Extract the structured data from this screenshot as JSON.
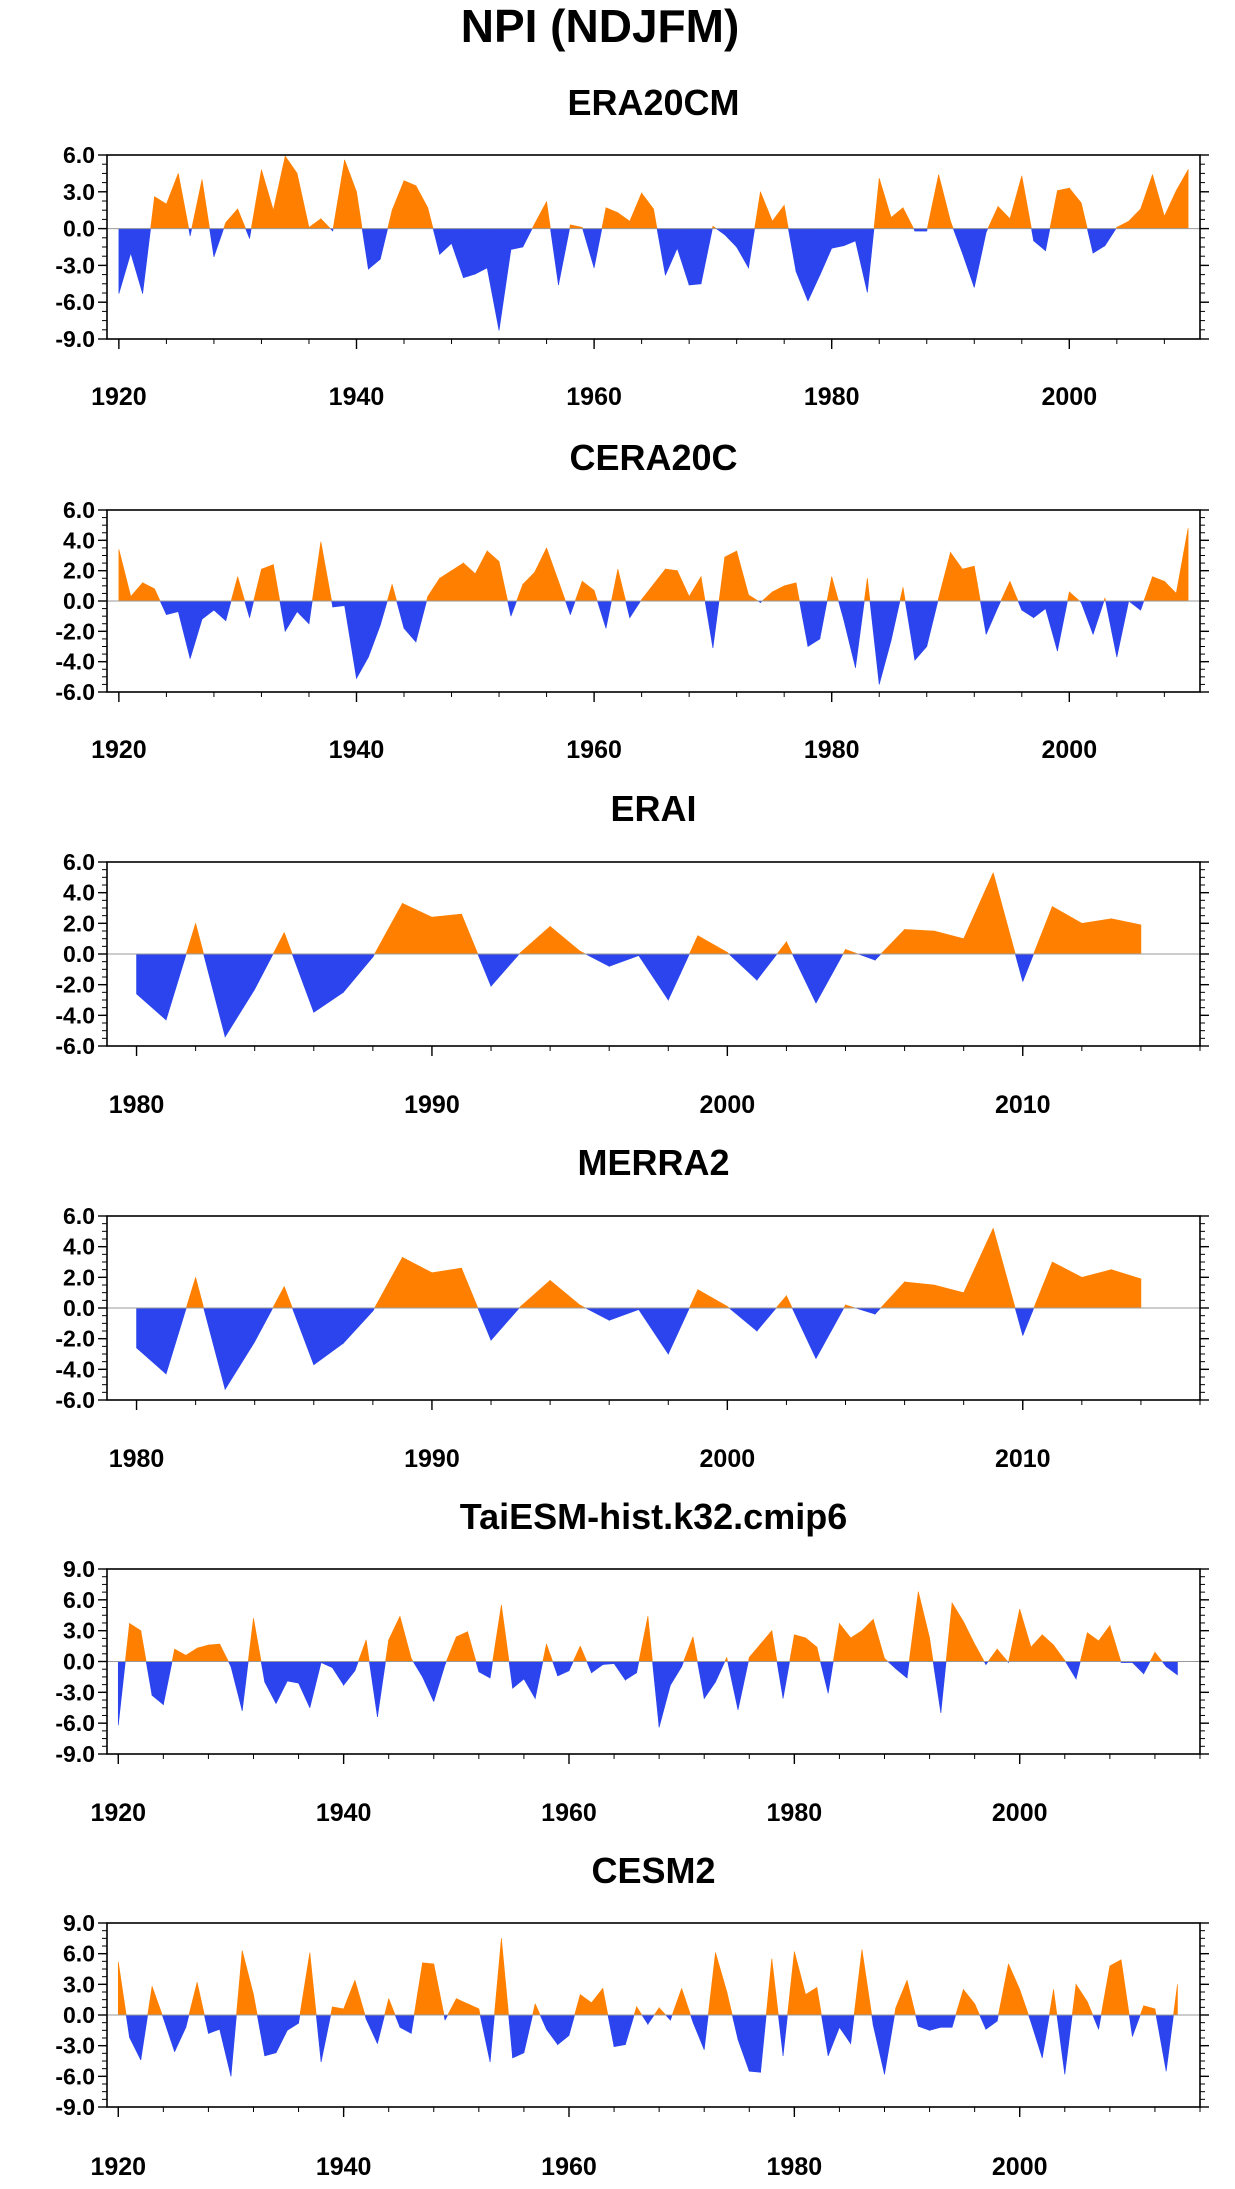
{
  "figure": {
    "title": "NPI (NDJFM)",
    "colors": {
      "positive": "#ff8000",
      "negative": "#2b44ee",
      "axis": "#000000",
      "zero_line": "#999999"
    }
  },
  "chart_data": [
    {
      "type": "area",
      "title": "ERA20CM",
      "xlim": [
        1919,
        2011
      ],
      "ylim": [
        -9,
        6
      ],
      "yticks": [
        6,
        3,
        0,
        -3,
        -6,
        -9
      ],
      "ytick_labels": [
        "6.0",
        "3.0",
        "0.0",
        "-3.0",
        "-6.0",
        "-9.0"
      ],
      "xticks": [
        1920,
        1940,
        1960,
        1980,
        2000
      ],
      "x": [
        1920,
        1921,
        1922,
        1923,
        1924,
        1925,
        1926,
        1927,
        1928,
        1929,
        1930,
        1931,
        1932,
        1933,
        1934,
        1935,
        1936,
        1937,
        1938,
        1939,
        1940,
        1941,
        1942,
        1943,
        1944,
        1945,
        1946,
        1947,
        1948,
        1949,
        1950,
        1951,
        1952,
        1953,
        1954,
        1955,
        1956,
        1957,
        1958,
        1959,
        1960,
        1961,
        1962,
        1963,
        1964,
        1965,
        1966,
        1967,
        1968,
        1969,
        1970,
        1971,
        1972,
        1973,
        1974,
        1975,
        1976,
        1977,
        1978,
        1979,
        1980,
        1981,
        1982,
        1983,
        1984,
        1985,
        1986,
        1987,
        1988,
        1989,
        1990,
        1991,
        1992,
        1993,
        1994,
        1995,
        1996,
        1997,
        1998,
        1999,
        2000,
        2001,
        2002,
        2003,
        2004,
        2005,
        2006,
        2007,
        2008,
        2009,
        2010
      ],
      "values": [
        -5.3,
        -2.0,
        -5.3,
        2.6,
        2.0,
        4.5,
        -0.6,
        4.0,
        -2.3,
        0.5,
        1.6,
        -0.8,
        4.8,
        1.5,
        5.9,
        4.5,
        0.1,
        0.8,
        -0.2,
        5.6,
        3.0,
        -3.3,
        -2.5,
        1.5,
        3.9,
        3.5,
        1.7,
        -2.1,
        -1.2,
        -4.0,
        -3.7,
        -3.2,
        -8.3,
        -1.7,
        -1.5,
        0.4,
        2.2,
        -4.6,
        0.3,
        0.1,
        -3.2,
        1.7,
        1.3,
        0.6,
        2.9,
        1.6,
        -3.8,
        -1.6,
        -4.6,
        -4.5,
        0.2,
        -0.5,
        -1.5,
        -3.2,
        3.0,
        0.6,
        1.9,
        -3.5,
        -5.9,
        -3.8,
        -1.6,
        -1.4,
        -1.0,
        -5.2,
        4.1,
        0.9,
        1.7,
        -0.2,
        -0.2,
        4.4,
        0.6,
        -2.0,
        -4.8,
        -0.3,
        1.8,
        0.8,
        4.3,
        -1.0,
        -1.8,
        3.1,
        3.3,
        2.1,
        -2.0,
        -1.4,
        0.1,
        0.6,
        1.6,
        4.4,
        1.0,
        3.1,
        4.8
      ]
    },
    {
      "type": "area",
      "title": "CERA20C",
      "xlim": [
        1919,
        2011
      ],
      "ylim": [
        -6,
        6
      ],
      "yticks": [
        6,
        4,
        2,
        0,
        -2,
        -4,
        -6
      ],
      "ytick_labels": [
        "6.0",
        "4.0",
        "2.0",
        "0.0",
        "-2.0",
        "-4.0",
        "-6.0"
      ],
      "xticks": [
        1920,
        1940,
        1960,
        1980,
        2000
      ],
      "x": [
        1920,
        1921,
        1922,
        1923,
        1924,
        1925,
        1926,
        1927,
        1928,
        1929,
        1930,
        1931,
        1932,
        1933,
        1934,
        1935,
        1936,
        1937,
        1938,
        1939,
        1940,
        1941,
        1942,
        1943,
        1944,
        1945,
        1946,
        1947,
        1948,
        1949,
        1950,
        1951,
        1952,
        1953,
        1954,
        1955,
        1956,
        1957,
        1958,
        1959,
        1960,
        1961,
        1962,
        1963,
        1964,
        1965,
        1966,
        1967,
        1968,
        1969,
        1970,
        1971,
        1972,
        1973,
        1974,
        1975,
        1976,
        1977,
        1978,
        1979,
        1980,
        1981,
        1982,
        1983,
        1984,
        1985,
        1986,
        1987,
        1988,
        1989,
        1990,
        1991,
        1992,
        1993,
        1994,
        1995,
        1996,
        1997,
        1998,
        1999,
        2000,
        2001,
        2002,
        2003,
        2004,
        2005,
        2006,
        2007,
        2008,
        2009,
        2010
      ],
      "values": [
        3.4,
        0.3,
        1.2,
        0.8,
        -0.9,
        -0.7,
        -3.8,
        -1.2,
        -0.6,
        -1.3,
        1.6,
        -1.1,
        2.1,
        2.4,
        -2.0,
        -0.7,
        -1.5,
        3.9,
        -0.4,
        -0.3,
        -5.1,
        -3.7,
        -1.6,
        1.1,
        -1.8,
        -2.7,
        0.3,
        1.5,
        2.0,
        2.5,
        1.8,
        3.3,
        2.6,
        -1.0,
        1.1,
        1.9,
        3.5,
        1.3,
        -0.9,
        1.3,
        0.7,
        -1.8,
        2.1,
        -1.1,
        0.1,
        1.1,
        2.1,
        2.0,
        0.3,
        1.6,
        -3.1,
        2.9,
        3.3,
        0.4,
        -0.1,
        0.6,
        1.0,
        1.2,
        -3.0,
        -2.5,
        1.6,
        -1.2,
        -4.4,
        1.5,
        -5.5,
        -2.6,
        0.9,
        -3.9,
        -3.0,
        0.2,
        3.2,
        2.1,
        2.3,
        -2.2,
        -0.4,
        1.3,
        -0.6,
        -1.1,
        -0.5,
        -3.3,
        0.6,
        -0.1,
        -2.2,
        0.2,
        -3.7,
        0.0,
        -0.6,
        1.6,
        1.3,
        0.5,
        4.8
      ]
    },
    {
      "type": "area",
      "title": "ERAI",
      "xlim": [
        1979,
        2016
      ],
      "ylim": [
        -6,
        6
      ],
      "yticks": [
        6,
        4,
        2,
        0,
        -2,
        -4,
        -6
      ],
      "ytick_labels": [
        "6.0",
        "4.0",
        "2.0",
        "0.0",
        "-2.0",
        "-4.0",
        "-6.0"
      ],
      "xticks": [
        1980,
        1990,
        2000,
        2010
      ],
      "x": [
        1980,
        1981,
        1982,
        1983,
        1984,
        1985,
        1986,
        1987,
        1988,
        1989,
        1990,
        1991,
        1992,
        1993,
        1994,
        1995,
        1996,
        1997,
        1998,
        1999,
        2000,
        2001,
        2002,
        2003,
        2004,
        2005,
        2006,
        2007,
        2008,
        2009,
        2010,
        2011,
        2012,
        2013,
        2014
      ],
      "values": [
        -2.6,
        -4.3,
        2.0,
        -5.4,
        -2.3,
        1.4,
        -3.8,
        -2.5,
        -0.2,
        3.3,
        2.4,
        2.6,
        -2.1,
        0.1,
        1.8,
        0.2,
        -0.8,
        -0.1,
        -3.0,
        1.2,
        0.1,
        -1.7,
        0.8,
        -3.2,
        0.3,
        -0.4,
        1.6,
        1.5,
        1.0,
        5.3,
        -1.8,
        3.1,
        2.0,
        2.3,
        1.9
      ]
    },
    {
      "type": "area",
      "title": "MERRA2",
      "xlim": [
        1979,
        2016
      ],
      "ylim": [
        -6,
        6
      ],
      "yticks": [
        6,
        4,
        2,
        0,
        -2,
        -4,
        -6
      ],
      "ytick_labels": [
        "6.0",
        "4.0",
        "2.0",
        "0.0",
        "-2.0",
        "-4.0",
        "-6.0"
      ],
      "xticks": [
        1980,
        1990,
        2000,
        2010
      ],
      "x": [
        1980,
        1981,
        1982,
        1983,
        1984,
        1985,
        1986,
        1987,
        1988,
        1989,
        1990,
        1991,
        1992,
        1993,
        1994,
        1995,
        1996,
        1997,
        1998,
        1999,
        2000,
        2001,
        2002,
        2003,
        2004,
        2005,
        2006,
        2007,
        2008,
        2009,
        2010,
        2011,
        2012,
        2013,
        2014
      ],
      "values": [
        -2.6,
        -4.3,
        2.0,
        -5.3,
        -2.2,
        1.4,
        -3.7,
        -2.3,
        -0.2,
        3.3,
        2.3,
        2.6,
        -2.1,
        0.1,
        1.8,
        0.2,
        -0.8,
        -0.1,
        -3.0,
        1.2,
        0.1,
        -1.5,
        0.8,
        -3.3,
        0.2,
        -0.4,
        1.7,
        1.5,
        1.0,
        5.2,
        -1.8,
        3.0,
        2.0,
        2.5,
        1.9
      ]
    },
    {
      "type": "area",
      "title": "TaiESM-hist.k32.cmip6",
      "xlim": [
        1919,
        2016
      ],
      "ylim": [
        -9,
        9
      ],
      "yticks": [
        9,
        6,
        3,
        0,
        -3,
        -6,
        -9
      ],
      "ytick_labels": [
        "9.0",
        "6.0",
        "3.0",
        "0.0",
        "-3.0",
        "-6.0",
        "-9.0"
      ],
      "xticks": [
        1920,
        1940,
        1960,
        1980,
        2000
      ],
      "x": [
        1920,
        1921,
        1922,
        1923,
        1924,
        1925,
        1926,
        1927,
        1928,
        1929,
        1930,
        1931,
        1932,
        1933,
        1934,
        1935,
        1936,
        1937,
        1938,
        1939,
        1940,
        1941,
        1942,
        1943,
        1944,
        1945,
        1946,
        1947,
        1948,
        1949,
        1950,
        1951,
        1952,
        1953,
        1954,
        1955,
        1956,
        1957,
        1958,
        1959,
        1960,
        1961,
        1962,
        1963,
        1964,
        1965,
        1966,
        1967,
        1968,
        1969,
        1970,
        1971,
        1972,
        1973,
        1974,
        1975,
        1976,
        1977,
        1978,
        1979,
        1980,
        1981,
        1982,
        1983,
        1984,
        1985,
        1986,
        1987,
        1988,
        1989,
        1990,
        1991,
        1992,
        1993,
        1994,
        1995,
        1996,
        1997,
        1998,
        1999,
        2000,
        2001,
        2002,
        2003,
        2004,
        2005,
        2006,
        2007,
        2008,
        2009,
        2010,
        2011,
        2012,
        2013,
        2014
      ],
      "values": [
        -6.2,
        3.7,
        3.0,
        -3.3,
        -4.2,
        1.2,
        0.6,
        1.3,
        1.6,
        1.7,
        -0.5,
        -4.8,
        4.2,
        -2.0,
        -4.1,
        -1.9,
        -2.1,
        -4.5,
        -0.1,
        -0.6,
        -2.3,
        -0.9,
        2.1,
        -5.4,
        2.1,
        4.4,
        0.3,
        -1.5,
        -3.9,
        -0.3,
        2.4,
        2.9,
        -1.0,
        -1.6,
        5.5,
        -2.6,
        -1.7,
        -3.6,
        1.7,
        -1.4,
        -0.9,
        1.5,
        -1.1,
        -0.3,
        -0.2,
        -1.8,
        -1.1,
        4.4,
        -6.4,
        -2.3,
        -0.5,
        2.4,
        -3.6,
        -2.0,
        0.4,
        -4.7,
        0.4,
        1.7,
        3.0,
        -3.6,
        2.6,
        2.3,
        1.4,
        -3.1,
        3.7,
        2.3,
        3.0,
        4.1,
        0.3,
        -0.7,
        -1.6,
        6.8,
        2.3,
        -5.0,
        5.7,
        3.9,
        1.7,
        -0.3,
        1.2,
        -0.1,
        5.1,
        1.4,
        2.6,
        1.6,
        0.1,
        -1.7,
        2.8,
        2.0,
        3.5,
        -0.1,
        -0.1,
        -1.2,
        0.9,
        -0.5,
        -1.3
      ]
    },
    {
      "type": "area",
      "title": "CESM2",
      "xlim": [
        1919,
        2016
      ],
      "ylim": [
        -9,
        9
      ],
      "yticks": [
        9,
        6,
        3,
        0,
        -3,
        -6,
        -9
      ],
      "ytick_labels": [
        "9.0",
        "6.0",
        "3.0",
        "0.0",
        "-3.0",
        "-6.0",
        "-9.0"
      ],
      "xticks": [
        1920,
        1940,
        1960,
        1980,
        2000
      ],
      "x": [
        1920,
        1921,
        1922,
        1923,
        1924,
        1925,
        1926,
        1927,
        1928,
        1929,
        1930,
        1931,
        1932,
        1933,
        1934,
        1935,
        1936,
        1937,
        1938,
        1939,
        1940,
        1941,
        1942,
        1943,
        1944,
        1945,
        1946,
        1947,
        1948,
        1949,
        1950,
        1951,
        1952,
        1953,
        1954,
        1955,
        1956,
        1957,
        1958,
        1959,
        1960,
        1961,
        1962,
        1963,
        1964,
        1965,
        1966,
        1967,
        1968,
        1969,
        1970,
        1971,
        1972,
        1973,
        1974,
        1975,
        1976,
        1977,
        1978,
        1979,
        1980,
        1981,
        1982,
        1983,
        1984,
        1985,
        1986,
        1987,
        1988,
        1989,
        1990,
        1991,
        1992,
        1993,
        1994,
        1995,
        1996,
        1997,
        1998,
        1999,
        2000,
        2001,
        2002,
        2003,
        2004,
        2005,
        2006,
        2007,
        2008,
        2009,
        2010,
        2011,
        2012,
        2013,
        2014
      ],
      "values": [
        5.2,
        -2.2,
        -4.4,
        2.8,
        -0.3,
        -3.6,
        -1.2,
        3.2,
        -1.8,
        -1.4,
        -6.0,
        6.3,
        2.0,
        -4.0,
        -3.7,
        -1.5,
        -0.8,
        6.1,
        -4.6,
        0.8,
        0.6,
        3.4,
        -0.4,
        -2.8,
        1.6,
        -1.2,
        -1.8,
        5.1,
        5.0,
        -0.5,
        1.6,
        1.1,
        0.6,
        -4.6,
        7.5,
        -4.2,
        -3.7,
        1.1,
        -1.4,
        -2.9,
        -2.0,
        2.0,
        1.2,
        2.6,
        -3.1,
        -2.9,
        0.8,
        -0.9,
        0.7,
        -0.5,
        2.6,
        -0.7,
        -3.4,
        6.1,
        2.3,
        -2.4,
        -5.5,
        -5.6,
        5.5,
        -4.0,
        6.2,
        2.0,
        2.7,
        -4.0,
        -1.2,
        -2.8,
        6.4,
        -1.0,
        -5.8,
        0.7,
        3.4,
        -1.1,
        -1.5,
        -1.2,
        -1.2,
        2.5,
        1.1,
        -1.4,
        -0.6,
        5.0,
        2.5,
        -0.7,
        -4.2,
        2.5,
        -5.8,
        3.0,
        1.3,
        -1.4,
        4.8,
        5.4,
        -2.1,
        0.9,
        0.6,
        -5.5,
        3.0
      ]
    }
  ]
}
